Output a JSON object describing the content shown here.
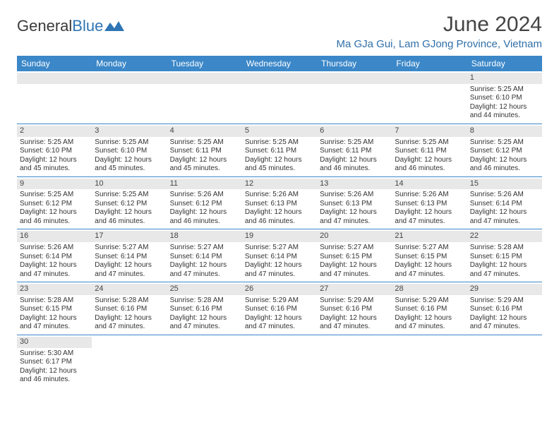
{
  "logo": {
    "part1": "General",
    "part2": "Blue"
  },
  "title": "June 2024",
  "location": "Ma GJa Gui, Lam GJong Province, Vietnam",
  "weekdays": [
    "Sunday",
    "Monday",
    "Tuesday",
    "Wednesday",
    "Thursday",
    "Friday",
    "Saturday"
  ],
  "colors": {
    "header_bg": "#3b87c8",
    "location_text": "#2f6fa8",
    "daynum_bg": "#e8e8e8",
    "row_border": "#3b87c8"
  },
  "typography": {
    "title_fontsize": 30,
    "location_fontsize": 15,
    "weekday_fontsize": 12,
    "daynum_fontsize": 11,
    "body_fontsize": 10
  },
  "layout": {
    "columns": 7,
    "rows": 6
  },
  "weeks": [
    [
      {
        "num": "",
        "text": ""
      },
      {
        "num": "",
        "text": ""
      },
      {
        "num": "",
        "text": ""
      },
      {
        "num": "",
        "text": ""
      },
      {
        "num": "",
        "text": ""
      },
      {
        "num": "",
        "text": ""
      },
      {
        "num": "1",
        "text": "Sunrise: 5:25 AM\nSunset: 6:10 PM\nDaylight: 12 hours and 44 minutes."
      }
    ],
    [
      {
        "num": "2",
        "text": "Sunrise: 5:25 AM\nSunset: 6:10 PM\nDaylight: 12 hours and 45 minutes."
      },
      {
        "num": "3",
        "text": "Sunrise: 5:25 AM\nSunset: 6:10 PM\nDaylight: 12 hours and 45 minutes."
      },
      {
        "num": "4",
        "text": "Sunrise: 5:25 AM\nSunset: 6:11 PM\nDaylight: 12 hours and 45 minutes."
      },
      {
        "num": "5",
        "text": "Sunrise: 5:25 AM\nSunset: 6:11 PM\nDaylight: 12 hours and 45 minutes."
      },
      {
        "num": "6",
        "text": "Sunrise: 5:25 AM\nSunset: 6:11 PM\nDaylight: 12 hours and 46 minutes."
      },
      {
        "num": "7",
        "text": "Sunrise: 5:25 AM\nSunset: 6:11 PM\nDaylight: 12 hours and 46 minutes."
      },
      {
        "num": "8",
        "text": "Sunrise: 5:25 AM\nSunset: 6:12 PM\nDaylight: 12 hours and 46 minutes."
      }
    ],
    [
      {
        "num": "9",
        "text": "Sunrise: 5:25 AM\nSunset: 6:12 PM\nDaylight: 12 hours and 46 minutes."
      },
      {
        "num": "10",
        "text": "Sunrise: 5:25 AM\nSunset: 6:12 PM\nDaylight: 12 hours and 46 minutes."
      },
      {
        "num": "11",
        "text": "Sunrise: 5:26 AM\nSunset: 6:12 PM\nDaylight: 12 hours and 46 minutes."
      },
      {
        "num": "12",
        "text": "Sunrise: 5:26 AM\nSunset: 6:13 PM\nDaylight: 12 hours and 46 minutes."
      },
      {
        "num": "13",
        "text": "Sunrise: 5:26 AM\nSunset: 6:13 PM\nDaylight: 12 hours and 47 minutes."
      },
      {
        "num": "14",
        "text": "Sunrise: 5:26 AM\nSunset: 6:13 PM\nDaylight: 12 hours and 47 minutes."
      },
      {
        "num": "15",
        "text": "Sunrise: 5:26 AM\nSunset: 6:14 PM\nDaylight: 12 hours and 47 minutes."
      }
    ],
    [
      {
        "num": "16",
        "text": "Sunrise: 5:26 AM\nSunset: 6:14 PM\nDaylight: 12 hours and 47 minutes."
      },
      {
        "num": "17",
        "text": "Sunrise: 5:27 AM\nSunset: 6:14 PM\nDaylight: 12 hours and 47 minutes."
      },
      {
        "num": "18",
        "text": "Sunrise: 5:27 AM\nSunset: 6:14 PM\nDaylight: 12 hours and 47 minutes."
      },
      {
        "num": "19",
        "text": "Sunrise: 5:27 AM\nSunset: 6:14 PM\nDaylight: 12 hours and 47 minutes."
      },
      {
        "num": "20",
        "text": "Sunrise: 5:27 AM\nSunset: 6:15 PM\nDaylight: 12 hours and 47 minutes."
      },
      {
        "num": "21",
        "text": "Sunrise: 5:27 AM\nSunset: 6:15 PM\nDaylight: 12 hours and 47 minutes."
      },
      {
        "num": "22",
        "text": "Sunrise: 5:28 AM\nSunset: 6:15 PM\nDaylight: 12 hours and 47 minutes."
      }
    ],
    [
      {
        "num": "23",
        "text": "Sunrise: 5:28 AM\nSunset: 6:15 PM\nDaylight: 12 hours and 47 minutes."
      },
      {
        "num": "24",
        "text": "Sunrise: 5:28 AM\nSunset: 6:16 PM\nDaylight: 12 hours and 47 minutes."
      },
      {
        "num": "25",
        "text": "Sunrise: 5:28 AM\nSunset: 6:16 PM\nDaylight: 12 hours and 47 minutes."
      },
      {
        "num": "26",
        "text": "Sunrise: 5:29 AM\nSunset: 6:16 PM\nDaylight: 12 hours and 47 minutes."
      },
      {
        "num": "27",
        "text": "Sunrise: 5:29 AM\nSunset: 6:16 PM\nDaylight: 12 hours and 47 minutes."
      },
      {
        "num": "28",
        "text": "Sunrise: 5:29 AM\nSunset: 6:16 PM\nDaylight: 12 hours and 47 minutes."
      },
      {
        "num": "29",
        "text": "Sunrise: 5:29 AM\nSunset: 6:16 PM\nDaylight: 12 hours and 47 minutes."
      }
    ],
    [
      {
        "num": "30",
        "text": "Sunrise: 5:30 AM\nSunset: 6:17 PM\nDaylight: 12 hours and 46 minutes."
      },
      {
        "num": "",
        "text": ""
      },
      {
        "num": "",
        "text": ""
      },
      {
        "num": "",
        "text": ""
      },
      {
        "num": "",
        "text": ""
      },
      {
        "num": "",
        "text": ""
      },
      {
        "num": "",
        "text": ""
      }
    ]
  ]
}
